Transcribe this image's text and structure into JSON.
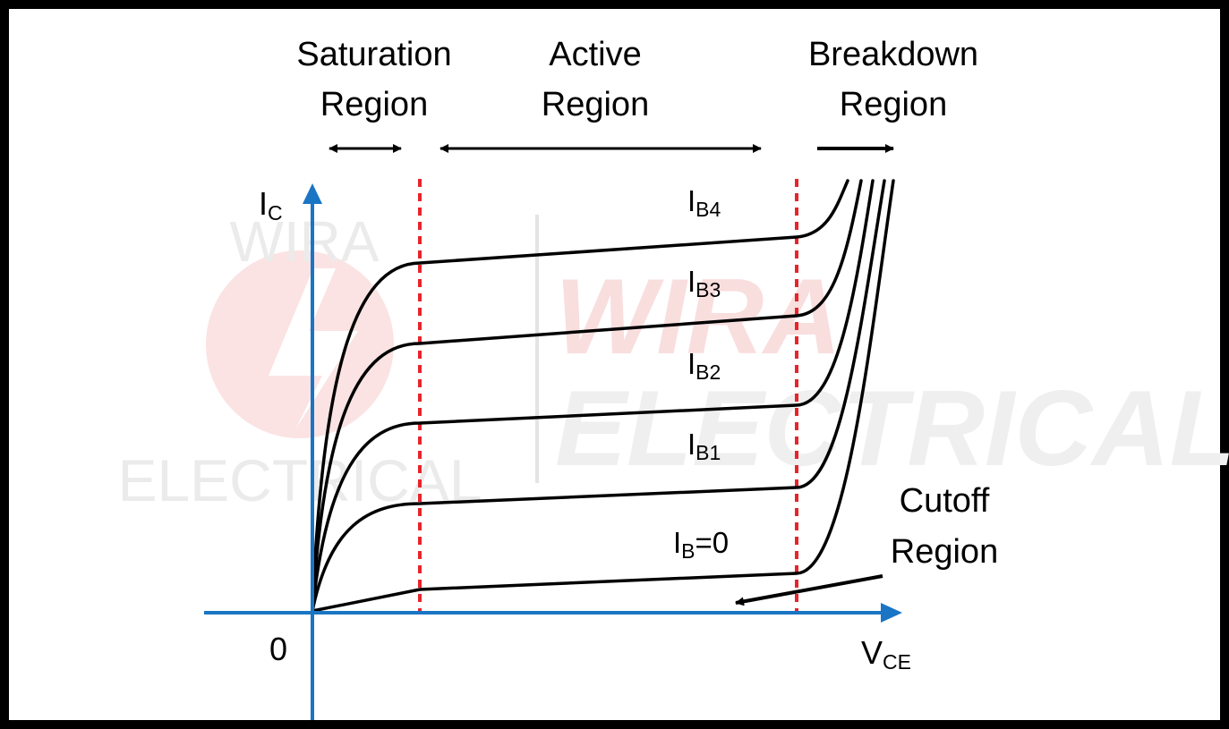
{
  "regions": {
    "saturation": {
      "line1": "Saturation",
      "line2": "Region"
    },
    "active": {
      "line1": "Active",
      "line2": "Region"
    },
    "breakdown": {
      "line1": "Breakdown",
      "line2": "Region"
    },
    "cutoff": {
      "line1": "Cutoff",
      "line2": "Region"
    }
  },
  "axes": {
    "y_main": "I",
    "y_sub": "C",
    "x_main": "V",
    "x_sub": "CE",
    "origin": "0"
  },
  "curves": [
    {
      "main": "I",
      "sub": "B4",
      "suffix": ""
    },
    {
      "main": "I",
      "sub": "B3",
      "suffix": ""
    },
    {
      "main": "I",
      "sub": "B2",
      "suffix": ""
    },
    {
      "main": "I",
      "sub": "B1",
      "suffix": ""
    },
    {
      "main": "I",
      "sub": "B",
      "suffix": "=0"
    }
  ],
  "watermark": {
    "logo_top": "WIRA",
    "logo_bottom": "ELECTRICAL",
    "big_top": "WIRA",
    "big_bottom": "ELECTRICAL"
  },
  "colors": {
    "axis": "#1a75c4",
    "curve": "#000000",
    "boundary": "#e8242b",
    "watermark_text": "#e6e6e6",
    "watermark_red": "#f6d3d3"
  }
}
